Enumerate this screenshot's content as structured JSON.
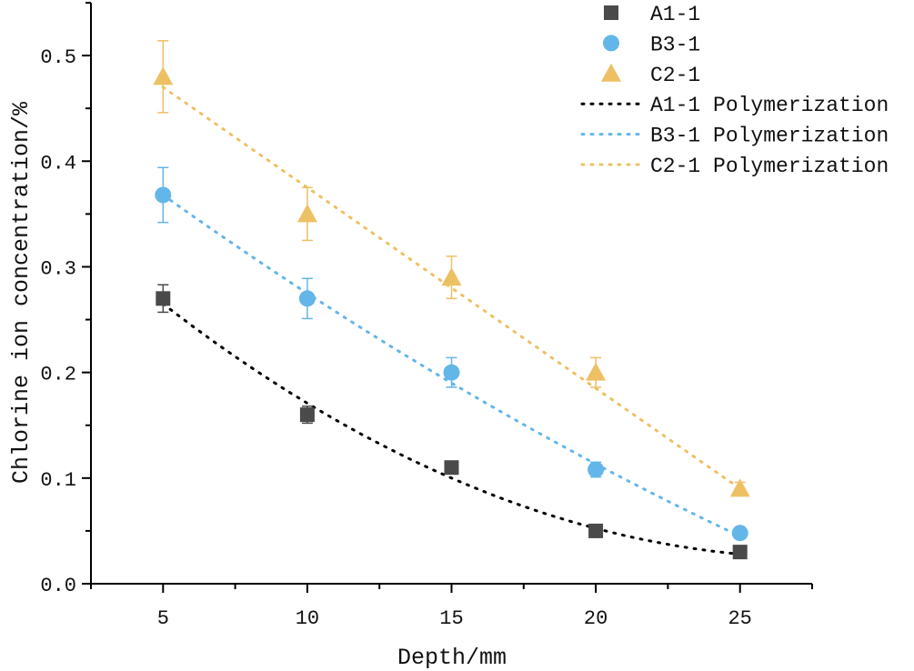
{
  "chart_data": {
    "type": "scatter",
    "title": "",
    "xlabel": "Depth/mm",
    "ylabel": "Chlorine ion concentration/%",
    "xlim": [
      2.5,
      27.5
    ],
    "ylim": [
      0,
      0.55
    ],
    "xticks": [
      "5",
      "10",
      "15",
      "20",
      "25"
    ],
    "yticks": [
      "0.0",
      "0.1",
      "0.2",
      "0.3",
      "0.4",
      "0.5"
    ],
    "grid": false,
    "legend_position": "top-right",
    "x": [
      5,
      10,
      15,
      20,
      25
    ],
    "series": [
      {
        "name": "A1-1",
        "marker": "square",
        "color": "#4a4a4a",
        "values": [
          0.27,
          0.16,
          0.11,
          0.05,
          0.03
        ],
        "errors": [
          0.013,
          0.008,
          0.004,
          0.003,
          0.002
        ]
      },
      {
        "name": "B3-1",
        "marker": "circle",
        "color": "#62b6e8",
        "values": [
          0.368,
          0.27,
          0.2,
          0.108,
          0.048
        ],
        "errors": [
          0.026,
          0.019,
          0.014,
          0.007,
          0.003
        ]
      },
      {
        "name": "C2-1",
        "marker": "triangle",
        "color": "#eec064",
        "values": [
          0.48,
          0.35,
          0.29,
          0.2,
          0.09
        ],
        "errors": [
          0.034,
          0.025,
          0.02,
          0.014,
          0.006
        ]
      }
    ],
    "fits": [
      {
        "name": "A1-1 Polymerization",
        "color": "#000000",
        "type": "polynomial",
        "x": [
          5,
          15,
          25
        ],
        "values": [
          0.265,
          0.1,
          0.028
        ]
      },
      {
        "name": "B3-1 Polymerization",
        "color": "#62b6e8",
        "type": "polynomial",
        "x": [
          5,
          15,
          25
        ],
        "values": [
          0.368,
          0.19,
          0.045
        ]
      },
      {
        "name": "C2-1 Polymerization",
        "color": "#eec064",
        "type": "polynomial",
        "x": [
          5,
          15,
          25
        ],
        "values": [
          0.47,
          0.28,
          0.09
        ]
      }
    ]
  }
}
